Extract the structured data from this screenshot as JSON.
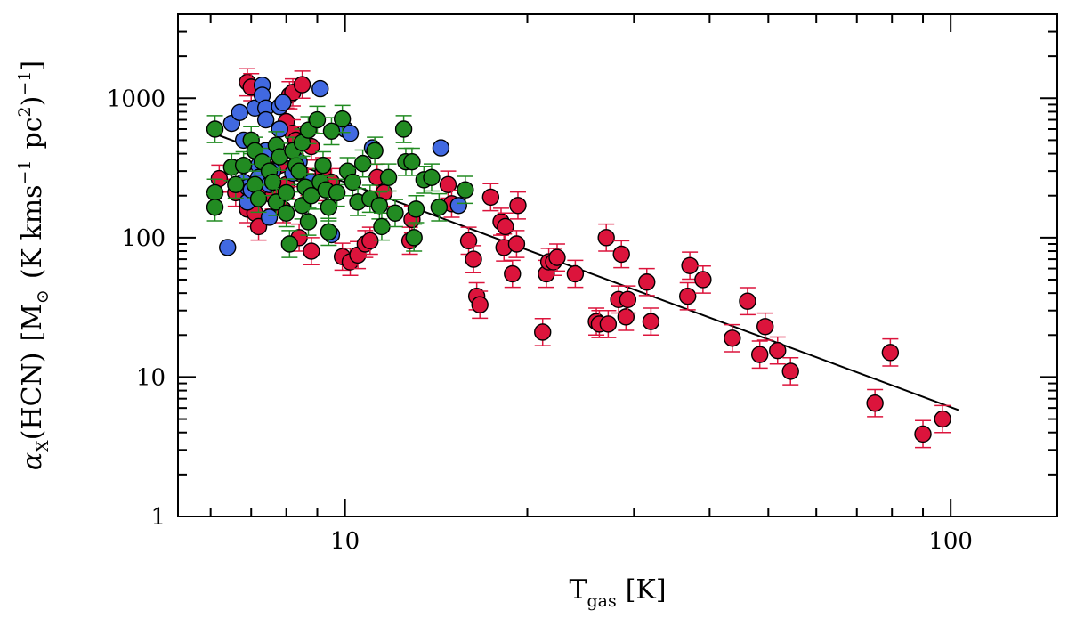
{
  "chart_data": {
    "type": "scatter",
    "title": "",
    "xlabel": {
      "main": "T",
      "sub": "gas",
      "unit": "[K]"
    },
    "ylabel": {
      "alpha": "α",
      "alpha_sub": "X",
      "molecule": "(HCN)",
      "open": "[M",
      "sun": "⊙",
      "unit_a": "(K kms",
      "sup_a": "−1",
      "unit_b": "pc",
      "sup_b": "2",
      "close": ")",
      "sup_c": "−1",
      "bracket": "]"
    },
    "x_scale": "log",
    "y_scale": "log",
    "xlim": [
      5.3,
      150
    ],
    "ylim": [
      1,
      4000
    ],
    "x_ticks": [
      {
        "value": 10,
        "label": "10"
      },
      {
        "value": 100,
        "label": "100"
      }
    ],
    "y_ticks": [
      {
        "value": 1,
        "label": "1"
      },
      {
        "value": 10,
        "label": "10"
      },
      {
        "value": 100,
        "label": "100"
      },
      {
        "value": 1000,
        "label": "1000"
      }
    ],
    "grid": false,
    "colors": {
      "red": "#dc143c",
      "green": "#228b22",
      "blue": "#4169e1",
      "fit": "#000000",
      "err_red": "#dc143c",
      "err_green": "#228b22"
    },
    "fit_line": {
      "x": [
        6.2,
        103
      ],
      "y": [
        540,
        5.8
      ]
    },
    "series": [
      {
        "color_key": "red",
        "points": [
          [
            6.2,
            265
          ],
          [
            6.6,
            210
          ],
          [
            6.9,
            1300
          ],
          [
            7.0,
            1200
          ],
          [
            6.9,
            160
          ],
          [
            7.1,
            150
          ],
          [
            7.2,
            120
          ],
          [
            7.4,
            230
          ],
          [
            7.5,
            280
          ],
          [
            7.6,
            200
          ],
          [
            7.8,
            330
          ],
          [
            7.9,
            160
          ],
          [
            8.0,
            680
          ],
          [
            8.0,
            240
          ],
          [
            8.1,
            1050
          ],
          [
            8.2,
            1100
          ],
          [
            8.2,
            560
          ],
          [
            8.3,
            500
          ],
          [
            8.4,
            290
          ],
          [
            8.4,
            100
          ],
          [
            8.5,
            1250
          ],
          [
            8.7,
            250
          ],
          [
            8.8,
            450
          ],
          [
            8.8,
            80
          ],
          [
            9.0,
            230
          ],
          [
            9.2,
            300
          ],
          [
            9.5,
            250
          ],
          [
            9.9,
            73
          ],
          [
            10.2,
            67
          ],
          [
            10.5,
            75
          ],
          [
            10.8,
            90
          ],
          [
            11.0,
            95
          ],
          [
            11.3,
            270
          ],
          [
            11.6,
            210
          ],
          [
            12.8,
            95
          ],
          [
            12.9,
            135
          ],
          [
            14.8,
            240
          ],
          [
            15.0,
            175
          ],
          [
            16.0,
            95
          ],
          [
            16.3,
            70
          ],
          [
            16.5,
            38
          ],
          [
            16.7,
            33
          ],
          [
            17.4,
            195
          ],
          [
            18.1,
            130
          ],
          [
            18.3,
            85
          ],
          [
            18.4,
            120
          ],
          [
            18.9,
            55
          ],
          [
            19.2,
            90
          ],
          [
            19.3,
            170
          ],
          [
            21.2,
            21
          ],
          [
            21.5,
            55
          ],
          [
            21.7,
            67
          ],
          [
            22.1,
            67
          ],
          [
            22.4,
            72
          ],
          [
            24.0,
            55
          ],
          [
            26.0,
            25
          ],
          [
            26.3,
            24
          ],
          [
            27.0,
            100
          ],
          [
            27.2,
            24
          ],
          [
            28.3,
            36
          ],
          [
            28.6,
            76
          ],
          [
            29.1,
            27
          ],
          [
            29.3,
            36
          ],
          [
            31.5,
            48
          ],
          [
            32.0,
            25
          ],
          [
            36.8,
            38
          ],
          [
            37.1,
            63
          ],
          [
            39.0,
            50
          ],
          [
            43.6,
            19
          ],
          [
            46.2,
            35
          ],
          [
            48.4,
            14.5
          ],
          [
            49.4,
            23
          ],
          [
            51.8,
            15.5
          ],
          [
            54.4,
            11
          ],
          [
            75.0,
            6.5
          ],
          [
            79.5,
            15
          ],
          [
            90.0,
            3.9
          ],
          [
            97.0,
            5.0
          ]
        ]
      },
      {
        "color_key": "green",
        "points": [
          [
            6.1,
            600
          ],
          [
            6.1,
            210
          ],
          [
            6.1,
            165
          ],
          [
            6.5,
            320
          ],
          [
            6.6,
            240
          ],
          [
            6.8,
            330
          ],
          [
            7.0,
            500
          ],
          [
            7.1,
            420
          ],
          [
            7.1,
            240
          ],
          [
            7.2,
            190
          ],
          [
            7.3,
            350
          ],
          [
            7.5,
            300
          ],
          [
            7.6,
            250
          ],
          [
            7.7,
            460
          ],
          [
            7.7,
            180
          ],
          [
            7.8,
            380
          ],
          [
            8.0,
            210
          ],
          [
            8.0,
            150
          ],
          [
            8.1,
            90
          ],
          [
            8.2,
            420
          ],
          [
            8.3,
            330
          ],
          [
            8.4,
            300
          ],
          [
            8.5,
            480
          ],
          [
            8.5,
            170
          ],
          [
            8.6,
            230
          ],
          [
            8.7,
            590
          ],
          [
            8.7,
            130
          ],
          [
            8.8,
            200
          ],
          [
            9.0,
            700
          ],
          [
            9.1,
            250
          ],
          [
            9.2,
            330
          ],
          [
            9.3,
            220
          ],
          [
            9.4,
            165
          ],
          [
            9.4,
            110
          ],
          [
            9.5,
            580
          ],
          [
            9.7,
            210
          ],
          [
            9.9,
            710
          ],
          [
            10.1,
            300
          ],
          [
            10.3,
            250
          ],
          [
            10.5,
            180
          ],
          [
            10.7,
            340
          ],
          [
            11.0,
            190
          ],
          [
            11.2,
            420
          ],
          [
            11.4,
            170
          ],
          [
            11.5,
            120
          ],
          [
            11.8,
            270
          ],
          [
            12.1,
            150
          ],
          [
            12.5,
            600
          ],
          [
            12.6,
            350
          ],
          [
            12.9,
            350
          ],
          [
            13.0,
            100
          ],
          [
            13.1,
            160
          ],
          [
            13.5,
            260
          ],
          [
            13.9,
            270
          ],
          [
            14.3,
            165
          ],
          [
            15.8,
            220
          ]
        ]
      },
      {
        "color_key": "blue",
        "points": [
          [
            6.4,
            85
          ],
          [
            6.5,
            660
          ],
          [
            6.7,
            790
          ],
          [
            6.8,
            500
          ],
          [
            6.8,
            250
          ],
          [
            6.9,
            180
          ],
          [
            6.9,
            230
          ],
          [
            7.0,
            220
          ],
          [
            7.1,
            850
          ],
          [
            7.2,
            330
          ],
          [
            7.2,
            270
          ],
          [
            7.3,
            1240
          ],
          [
            7.3,
            1050
          ],
          [
            7.4,
            850
          ],
          [
            7.4,
            700
          ],
          [
            7.4,
            420
          ],
          [
            7.5,
            240
          ],
          [
            7.5,
            140
          ],
          [
            7.6,
            300
          ],
          [
            7.8,
            870
          ],
          [
            7.8,
            600
          ],
          [
            7.9,
            930
          ],
          [
            8.2,
            290
          ],
          [
            8.4,
            350
          ],
          [
            8.8,
            250
          ],
          [
            9.1,
            1170
          ],
          [
            9.5,
            105
          ],
          [
            10.0,
            600
          ],
          [
            10.2,
            560
          ],
          [
            11.1,
            440
          ],
          [
            14.4,
            440
          ],
          [
            15.4,
            170
          ]
        ]
      }
    ]
  }
}
